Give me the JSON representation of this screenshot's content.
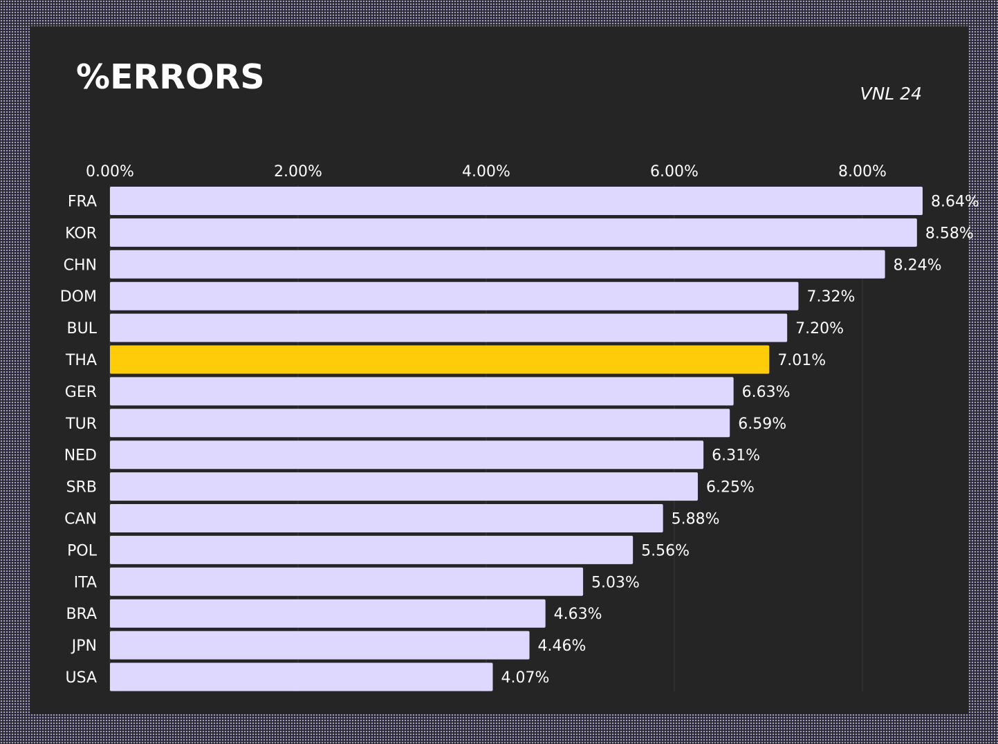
{
  "header": {
    "title": "%ERRORS",
    "subtitle": "VNL 24"
  },
  "colors": {
    "bar_default": "#ded8ff",
    "bar_highlight": "#ffcc0a",
    "text": "#ffffff",
    "grid": "#3a3a3a",
    "panel_background": "#252525",
    "border_dots": "#c4baf5"
  },
  "chart_data": {
    "type": "bar",
    "orientation": "horizontal",
    "title": "%ERRORS",
    "subtitle": "VNL 24",
    "xlabel": "",
    "ylabel": "",
    "xlim": [
      0,
      8.64
    ],
    "xticks": [
      0,
      2,
      4,
      6,
      8
    ],
    "xtick_labels": [
      "0.00%",
      "2.00%",
      "4.00%",
      "6.00%",
      "8.00%"
    ],
    "xaxis_position": "top",
    "grid": true,
    "highlight_category": "THA",
    "categories": [
      "FRA",
      "KOR",
      "CHN",
      "DOM",
      "BUL",
      "THA",
      "GER",
      "TUR",
      "NED",
      "SRB",
      "CAN",
      "POL",
      "ITA",
      "BRA",
      "JPN",
      "USA"
    ],
    "values": [
      8.64,
      8.58,
      8.24,
      7.32,
      7.2,
      7.01,
      6.63,
      6.59,
      6.31,
      6.25,
      5.88,
      5.56,
      5.03,
      4.63,
      4.46,
      4.07
    ],
    "value_labels": [
      "8.64%",
      "8.58%",
      "8.24%",
      "7.32%",
      "7.20%",
      "7.01%",
      "6.63%",
      "6.59%",
      "6.31%",
      "6.25%",
      "5.88%",
      "5.56%",
      "5.03%",
      "4.63%",
      "4.46%",
      "4.07%"
    ]
  }
}
